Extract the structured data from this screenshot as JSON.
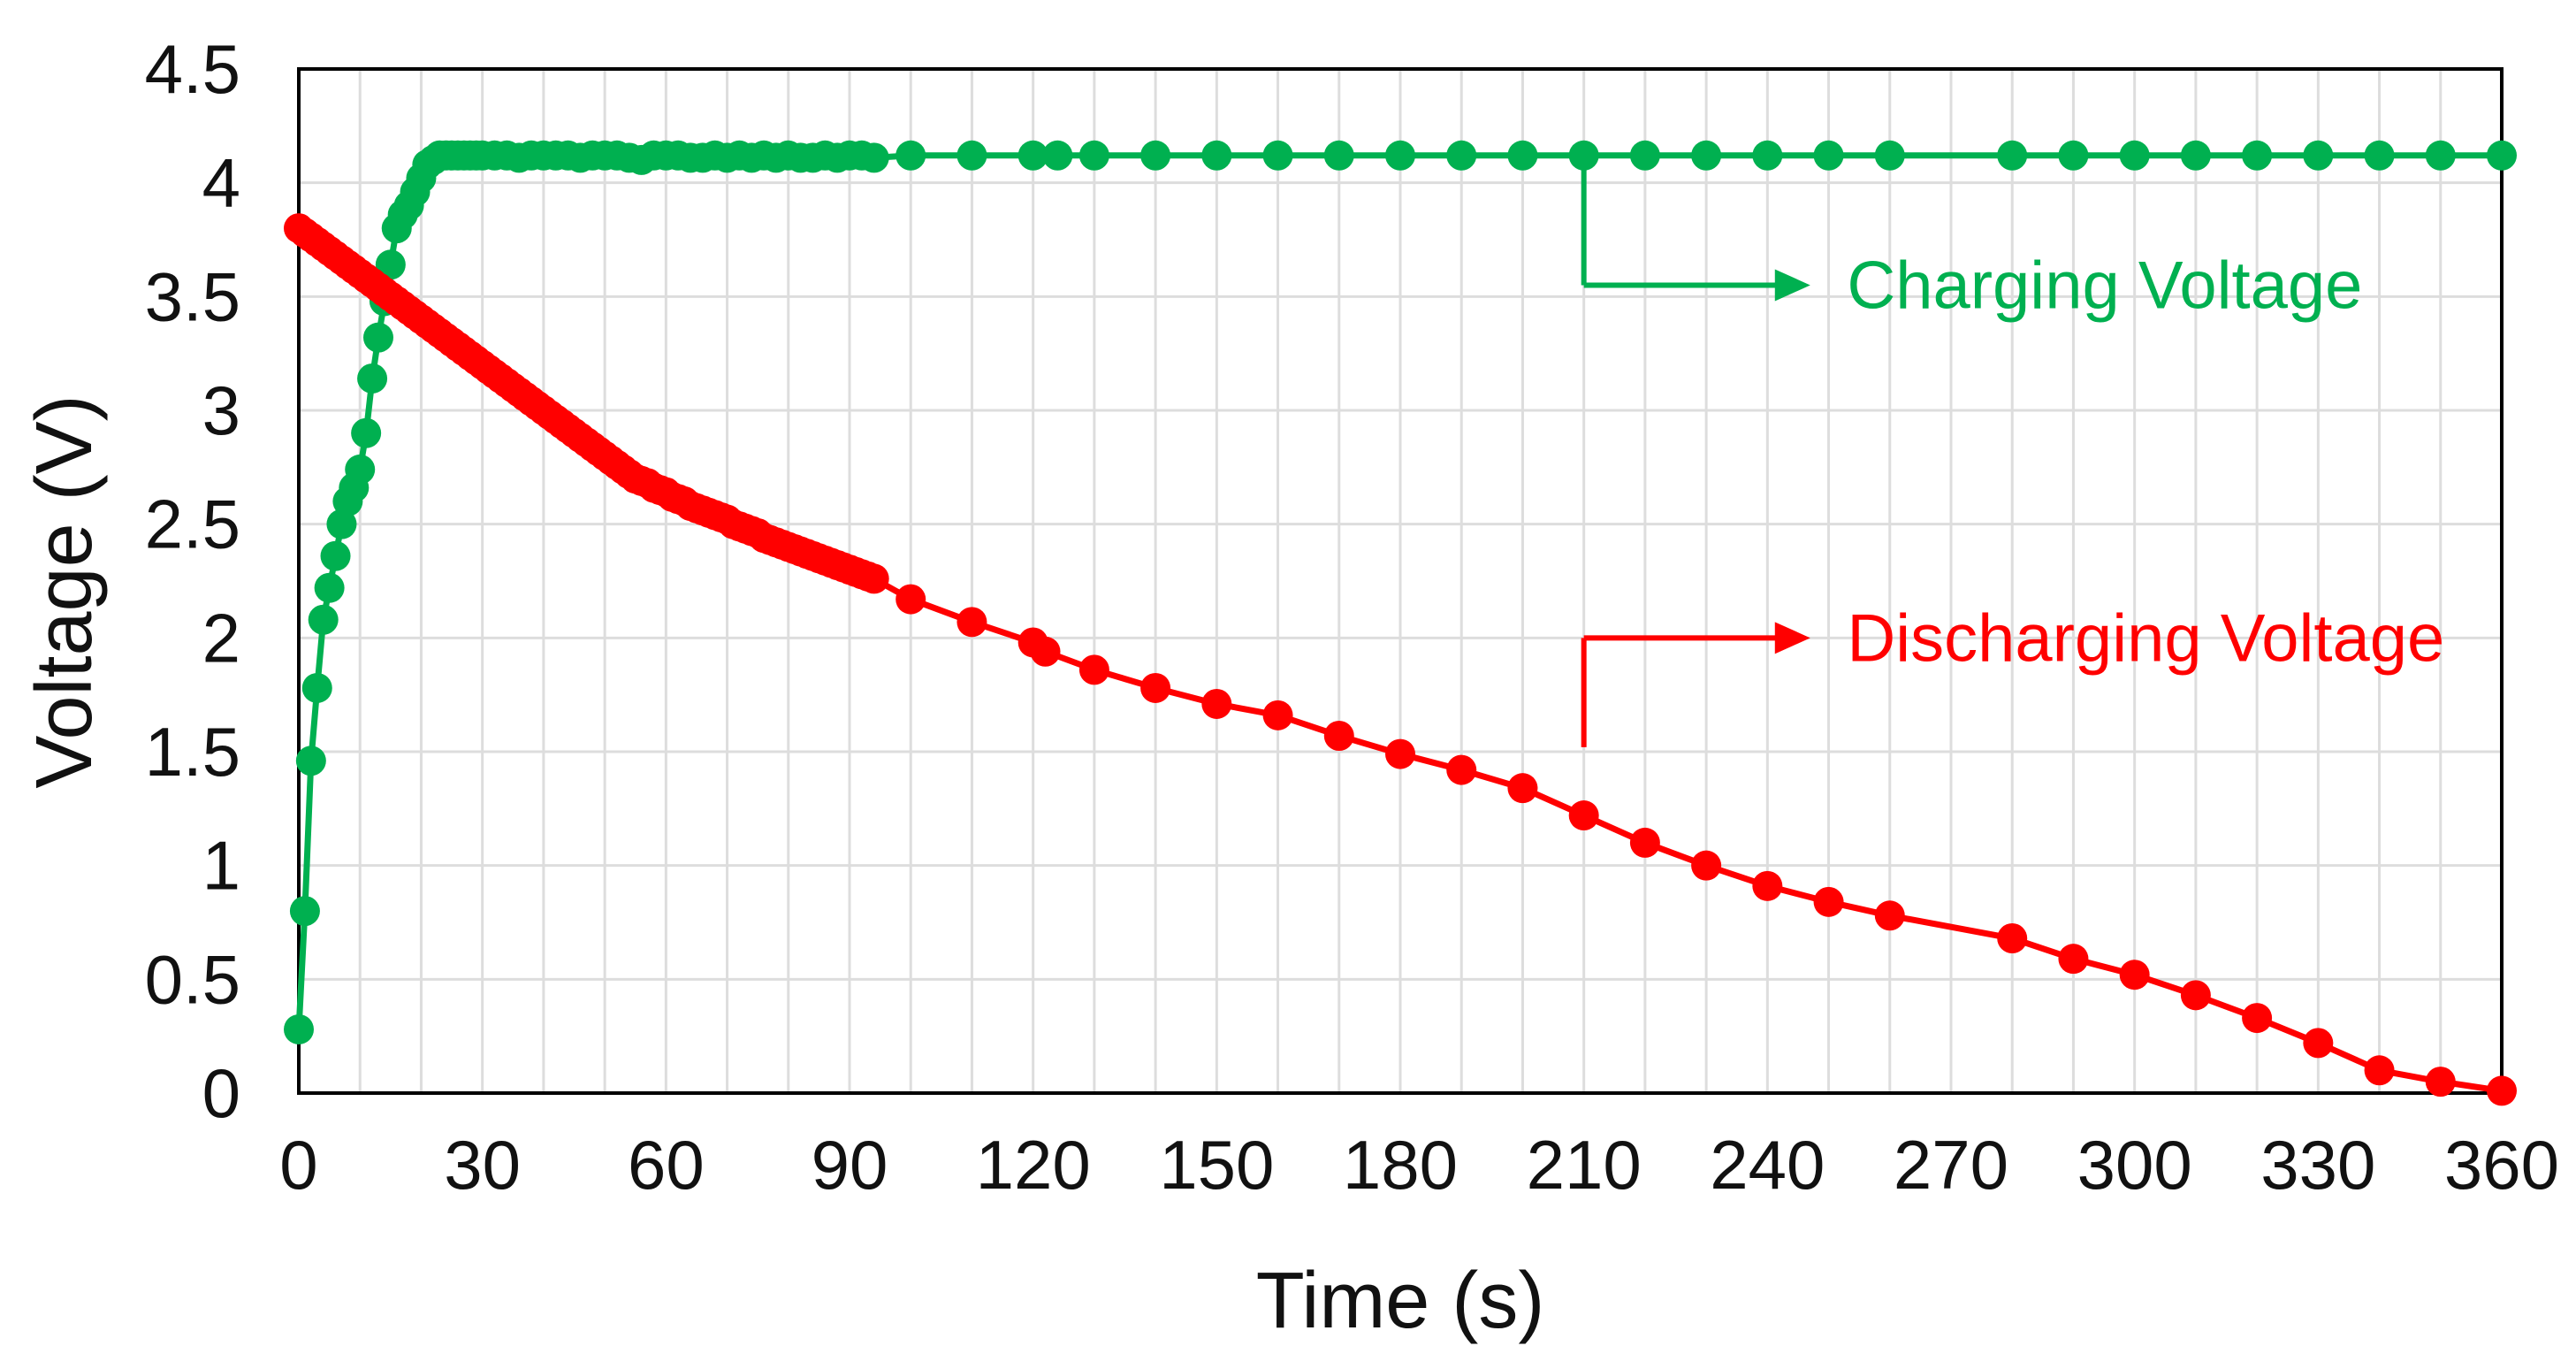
{
  "chart_data": {
    "type": "line",
    "title": "",
    "xlabel": "Time (s)",
    "ylabel": "Voltage (V)",
    "xlim": [
      0,
      360
    ],
    "ylim": [
      0,
      4.5
    ],
    "x_ticks": [
      0,
      30,
      60,
      90,
      120,
      150,
      180,
      210,
      240,
      270,
      300,
      330,
      360
    ],
    "x_tick_labels": [
      "0",
      "30",
      "60",
      "90",
      "120",
      "150",
      "180",
      "210",
      "240",
      "270",
      "300",
      "330",
      "360"
    ],
    "y_ticks": [
      0,
      0.5,
      1,
      1.5,
      2,
      2.5,
      3,
      3.5,
      4,
      4.5
    ],
    "y_tick_labels": [
      "0",
      "0.5",
      "1",
      "1.5",
      "2",
      "2.5",
      "3",
      "3.5",
      "4",
      "4.5"
    ],
    "grid": true,
    "series": [
      {
        "name": "Charging Voltage",
        "color": "#00B050",
        "x": [
          0,
          1,
          2,
          3,
          4,
          5,
          6,
          7,
          8,
          9,
          10,
          11,
          12,
          13,
          14,
          15,
          16,
          17,
          18,
          19,
          20,
          21,
          22,
          23,
          24,
          25,
          26,
          27,
          28,
          29,
          30,
          32,
          34,
          36,
          38,
          40,
          42,
          44,
          46,
          48,
          50,
          52,
          54,
          56,
          58,
          60,
          62,
          64,
          66,
          68,
          70,
          72,
          74,
          76,
          78,
          80,
          82,
          84,
          86,
          88,
          90,
          92,
          94,
          100,
          110,
          120,
          124,
          130,
          140,
          150,
          160,
          170,
          180,
          190,
          200,
          210,
          220,
          230,
          240,
          250,
          260,
          280,
          290,
          300,
          310,
          320,
          330,
          340,
          350,
          360
        ],
        "values": [
          0.28,
          0.8,
          1.46,
          1.78,
          2.08,
          2.22,
          2.36,
          2.5,
          2.6,
          2.66,
          2.74,
          2.9,
          3.14,
          3.32,
          3.48,
          3.64,
          3.8,
          3.86,
          3.9,
          3.96,
          4.02,
          4.08,
          4.1,
          4.12,
          4.12,
          4.12,
          4.12,
          4.12,
          4.12,
          4.12,
          4.12,
          4.12,
          4.12,
          4.11,
          4.12,
          4.12,
          4.12,
          4.12,
          4.11,
          4.12,
          4.12,
          4.12,
          4.11,
          4.1,
          4.12,
          4.12,
          4.12,
          4.11,
          4.11,
          4.12,
          4.11,
          4.12,
          4.11,
          4.12,
          4.11,
          4.12,
          4.11,
          4.11,
          4.12,
          4.11,
          4.12,
          4.12,
          4.11,
          4.12,
          4.12,
          4.12,
          4.12,
          4.12,
          4.12,
          4.12,
          4.12,
          4.12,
          4.12,
          4.12,
          4.12,
          4.12,
          4.12,
          4.12,
          4.12,
          4.12,
          4.12,
          4.12,
          4.12,
          4.12,
          4.12,
          4.12,
          4.12,
          4.12,
          4.12,
          4.12
        ]
      },
      {
        "name": "Discharging Voltage",
        "color": "#FF0000",
        "x": [
          0,
          1,
          2,
          3,
          4,
          5,
          6,
          7,
          8,
          9,
          10,
          11,
          12,
          13,
          14,
          15,
          16,
          17,
          18,
          19,
          20,
          21,
          22,
          23,
          24,
          25,
          26,
          27,
          28,
          29,
          30,
          31,
          32,
          33,
          34,
          35,
          36,
          37,
          38,
          39,
          40,
          41,
          42,
          43,
          44,
          45,
          46,
          47,
          48,
          49,
          50,
          51,
          52,
          53,
          54,
          55,
          56,
          57,
          58,
          59,
          60,
          61,
          62,
          63,
          64,
          65,
          66,
          67,
          68,
          69,
          70,
          71,
          72,
          73,
          74,
          75,
          76,
          77,
          78,
          79,
          80,
          81,
          82,
          83,
          84,
          85,
          86,
          87,
          88,
          89,
          90,
          91,
          92,
          93,
          94,
          100,
          110,
          120,
          122,
          130,
          140,
          150,
          160,
          170,
          180,
          190,
          200,
          210,
          220,
          230,
          240,
          250,
          260,
          280,
          290,
          300,
          310,
          320,
          330,
          340,
          350,
          360
        ],
        "values": [
          3.8,
          3.78,
          3.76,
          3.74,
          3.72,
          3.7,
          3.68,
          3.66,
          3.64,
          3.62,
          3.6,
          3.58,
          3.56,
          3.54,
          3.52,
          3.5,
          3.48,
          3.46,
          3.44,
          3.42,
          3.4,
          3.38,
          3.36,
          3.34,
          3.32,
          3.3,
          3.28,
          3.26,
          3.24,
          3.22,
          3.2,
          3.18,
          3.16,
          3.14,
          3.12,
          3.1,
          3.08,
          3.06,
          3.04,
          3.02,
          3.0,
          2.98,
          2.96,
          2.94,
          2.92,
          2.9,
          2.88,
          2.86,
          2.84,
          2.82,
          2.8,
          2.78,
          2.76,
          2.74,
          2.72,
          2.7,
          2.69,
          2.68,
          2.66,
          2.65,
          2.64,
          2.62,
          2.61,
          2.6,
          2.58,
          2.57,
          2.56,
          2.55,
          2.54,
          2.53,
          2.52,
          2.5,
          2.49,
          2.48,
          2.47,
          2.46,
          2.44,
          2.43,
          2.42,
          2.41,
          2.4,
          2.39,
          2.38,
          2.37,
          2.36,
          2.35,
          2.34,
          2.33,
          2.32,
          2.31,
          2.3,
          2.29,
          2.28,
          2.27,
          2.26,
          2.17,
          2.07,
          1.98,
          1.94,
          1.86,
          1.78,
          1.71,
          1.66,
          1.57,
          1.49,
          1.42,
          1.34,
          1.22,
          1.1,
          1.0,
          0.91,
          0.84,
          0.78,
          0.68,
          0.59,
          0.52,
          0.43,
          0.33,
          0.22,
          0.1,
          0.05,
          0.01
        ]
      }
    ],
    "annotations": [
      {
        "name": "charging-annotation",
        "text": "Charging Voltage",
        "series": "Charging Voltage",
        "anchor_x": 210,
        "anchor_y": 4.12,
        "elbow_y": 3.55,
        "arrow_end_x": 247,
        "text_x": 253,
        "text_y": 3.55
      },
      {
        "name": "discharging-annotation",
        "text": "Discharging Voltage",
        "series": "Discharging Voltage",
        "anchor_x": 210,
        "anchor_y": 1.52,
        "elbow_y": 2.0,
        "arrow_end_x": 247,
        "text_x": 253,
        "text_y": 2.0
      }
    ]
  }
}
